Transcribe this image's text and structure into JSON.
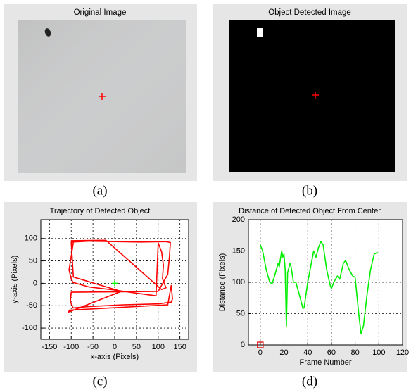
{
  "panels": [
    {
      "title": "Original Image",
      "caption": "(a)"
    },
    {
      "title": "Object Detected Image",
      "caption": "(b)"
    }
  ],
  "chart_data": [
    {
      "type": "line",
      "title": "Trajectory of Detected Object",
      "caption": "(c)",
      "xlabel": "x-axis (Pixels)",
      "ylabel": "y-axis (Pixels)",
      "xlim": [
        -170,
        170
      ],
      "ylim": [
        -125,
        142
      ],
      "xticks": [
        -150,
        -100,
        -50,
        0,
        50,
        100,
        150
      ],
      "yticks": [
        -100,
        -50,
        0,
        50,
        100
      ],
      "grid": true,
      "series": [
        {
          "color": "#ff0000",
          "x": [
            -95,
            -100,
            -105,
            -100,
            -96,
            -60,
            0,
            50,
            95,
            100,
            108,
            112,
            110,
            118,
            108,
            -20,
            -100,
            -98,
            -60,
            0,
            60,
            118,
            128,
            126,
            122,
            100,
            -100,
            -102,
            -96,
            -60,
            20,
            100,
            130,
            133,
            130,
            122,
            -104,
            -106,
            -100,
            15,
            -95,
            -100
          ],
          "values": [
            92,
            60,
            30,
            10,
            2,
            -8,
            -15,
            -22,
            -28,
            90,
            70,
            40,
            10,
            -10,
            -14,
            96,
            95,
            92,
            94,
            93,
            92,
            93,
            91,
            60,
            20,
            -18,
            -20,
            -40,
            -55,
            -52,
            -48,
            -46,
            -42,
            -35,
            -5,
            -48,
            -60,
            -64,
            -62,
            -18,
            14,
            92
          ]
        },
        {
          "color": "#00ff00",
          "marker": "plus",
          "x": [
            0
          ],
          "values": [
            0
          ]
        }
      ]
    },
    {
      "type": "line",
      "title": "Distance of Detected Object From Center",
      "caption": "(d)",
      "xlabel": "Frame Number",
      "ylabel": "Distance (Pixels)",
      "xlim": [
        -10,
        120
      ],
      "ylim": [
        0,
        200
      ],
      "xticks": [
        0,
        20,
        40,
        60,
        80,
        100,
        120
      ],
      "yticks": [
        0,
        50,
        100,
        150,
        200
      ],
      "grid": true,
      "series": [
        {
          "color": "#00ee00",
          "x": [
            0,
            2,
            5,
            8,
            10,
            12,
            15,
            16,
            18,
            19,
            20,
            21,
            22,
            23,
            25,
            26,
            28,
            30,
            33,
            36,
            37,
            40,
            43,
            45,
            47,
            49,
            51,
            53,
            56,
            59,
            60,
            62,
            65,
            67,
            70,
            72,
            75,
            78,
            80,
            83,
            85,
            87,
            90,
            93,
            96,
            99
          ],
          "values": [
            160,
            150,
            120,
            100,
            98,
            110,
            130,
            125,
            150,
            140,
            145,
            120,
            30,
            115,
            130,
            125,
            100,
            100,
            80,
            58,
            60,
            100,
            130,
            150,
            140,
            155,
            165,
            160,
            120,
            95,
            90,
            100,
            110,
            105,
            130,
            135,
            120,
            110,
            108,
            50,
            18,
            30,
            80,
            120,
            145,
            148
          ]
        },
        {
          "color": "#dd0000",
          "marker": "square",
          "x": [
            0
          ],
          "values": [
            0
          ]
        }
      ]
    }
  ]
}
